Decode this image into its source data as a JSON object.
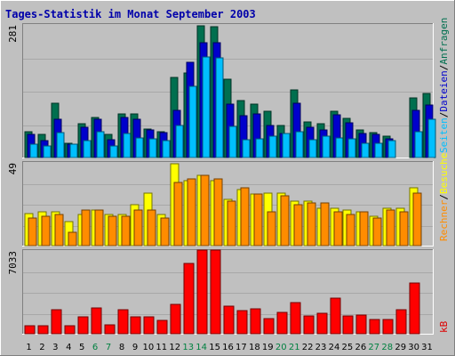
{
  "chart_data": {
    "type": "bar",
    "title": "Tages-Statistik im Monat September 2003",
    "days": [
      "1",
      "2",
      "3",
      "4",
      "5",
      "6",
      "7",
      "8",
      "9",
      "10",
      "11",
      "12",
      "13",
      "14",
      "15",
      "16",
      "17",
      "18",
      "19",
      "20",
      "21",
      "22",
      "23",
      "24",
      "25",
      "26",
      "27",
      "28",
      "29",
      "30",
      "31"
    ],
    "weekend_days": [
      "6",
      "7",
      "13",
      "14",
      "20",
      "21",
      "27",
      "28"
    ],
    "panels": [
      {
        "id": "hits",
        "ymax_label": "281",
        "ymax": 281,
        "right_labels": [
          {
            "text": "Seiten",
            "color": "#00bfff"
          },
          {
            "text": "/",
            "color": "#000000"
          },
          {
            "text": "Dateien",
            "color": "#0000cc"
          },
          {
            "text": "/",
            "color": "#000000"
          },
          {
            "text": "Anfragen",
            "color": "#006f4f"
          }
        ],
        "series": [
          {
            "name": "Anfragen",
            "color": "#006f4f",
            "values": [
              55,
              48,
              115,
              30,
              72,
              85,
              48,
              92,
              92,
              60,
              55,
              168,
              178,
              278,
              275,
              165,
              120,
              112,
              98,
              68,
              142,
              75,
              72,
              98,
              82,
              58,
              52,
              45,
              0,
              125,
              135
            ]
          },
          {
            "name": "Dateien",
            "color": "#0000cc",
            "values": [
              48,
              35,
              80,
              28,
              63,
              80,
              38,
              85,
              80,
              58,
              52,
              100,
              200,
              242,
              242,
              112,
              88,
              92,
              68,
              50,
              115,
              63,
              58,
              90,
              73,
              50,
              48,
              40,
              0,
              100,
              110
            ]
          },
          {
            "name": "Seiten",
            "color": "#00bfff",
            "values": [
              28,
              25,
              52,
              28,
              35,
              55,
              25,
              50,
              42,
              40,
              35,
              68,
              150,
              212,
              210,
              65,
              38,
              40,
              45,
              50,
              55,
              38,
              45,
              42,
              40,
              30,
              30,
              35,
              0,
              55,
              80
            ]
          }
        ]
      },
      {
        "id": "visits",
        "ymax_label": "49",
        "ymax": 49,
        "right_labels": [
          {
            "text": "Rechner",
            "color": "#ff8c00"
          },
          {
            "text": "/",
            "color": "#000000"
          },
          {
            "text": "Besuche",
            "color": "#ffff00"
          }
        ],
        "series": [
          {
            "name": "Besuche",
            "color": "#ffff00",
            "values": [
              19,
              20,
              20,
              14,
              18,
              21,
              18,
              18,
              24,
              31,
              18,
              48,
              38,
              41,
              38,
              27,
              33,
              30,
              31,
              31,
              26,
              26,
              22,
              22,
              21,
              20,
              17,
              22,
              22,
              34,
              0
            ]
          },
          {
            "name": "Rechner",
            "color": "#ff8c00",
            "values": [
              16,
              17,
              18,
              8,
              21,
              21,
              17,
              17,
              21,
              21,
              16,
              37,
              39,
              41,
              39,
              26,
              34,
              30,
              20,
              29,
              24,
              25,
              25,
              20,
              18,
              20,
              16,
              21,
              20,
              31,
              0
            ]
          }
        ]
      },
      {
        "id": "kb",
        "ymax_label": "7033",
        "ymax": 7033,
        "right_labels": [
          {
            "text": "kB",
            "color": "#dd0000"
          }
        ],
        "series": [
          {
            "name": "kB",
            "color": "#ff0000",
            "values": [
              700,
              700,
              2000,
              650,
              1450,
              2150,
              720,
              2000,
              1400,
              1400,
              1100,
              2500,
              5900,
              7033,
              7033,
              2300,
              1950,
              2100,
              1300,
              1800,
              2600,
              1500,
              1700,
              3000,
              1500,
              1600,
              1200,
              1200,
              2000,
              4300,
              0
            ]
          }
        ]
      }
    ]
  }
}
